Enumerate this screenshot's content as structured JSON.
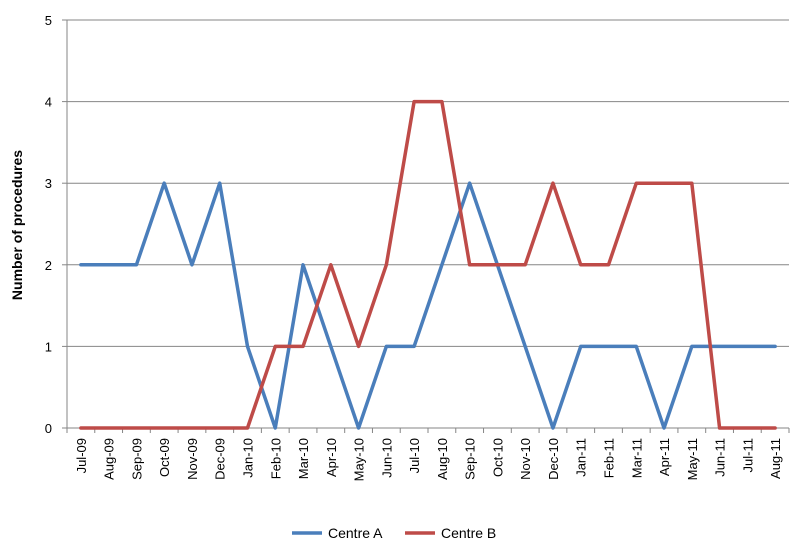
{
  "chart_data": {
    "type": "line",
    "title": "",
    "xlabel": "",
    "ylabel": "Number of procedures",
    "ylim": [
      0,
      5
    ],
    "yticks": [
      0,
      1,
      2,
      3,
      4,
      5
    ],
    "grid": "horizontal",
    "legend_position": "bottom",
    "categories": [
      "Jul-09",
      "Aug-09",
      "Sep-09",
      "Oct-09",
      "Nov-09",
      "Dec-09",
      "Jan-10",
      "Feb-10",
      "Mar-10",
      "Apr-10",
      "May-10",
      "Jun-10",
      "Jul-10",
      "Aug-10",
      "Sep-10",
      "Oct-10",
      "Nov-10",
      "Dec-10",
      "Jan-11",
      "Feb-11",
      "Mar-11",
      "Apr-11",
      "May-11",
      "Jun-11",
      "Jul-11",
      "Aug-11"
    ],
    "series": [
      {
        "name": "Centre A",
        "color": "#4A7EBB",
        "values": [
          2,
          2,
          2,
          3,
          2,
          3,
          1,
          0,
          2,
          1,
          0,
          1,
          1,
          2,
          3,
          2,
          1,
          0,
          1,
          1,
          1,
          0,
          1,
          1,
          1,
          1
        ]
      },
      {
        "name": "Centre B",
        "color": "#BE4B48",
        "values": [
          0,
          0,
          0,
          0,
          0,
          0,
          0,
          1,
          1,
          2,
          1,
          2,
          4,
          4,
          2,
          2,
          2,
          3,
          2,
          2,
          3,
          3,
          3,
          0,
          0,
          0
        ]
      }
    ]
  }
}
